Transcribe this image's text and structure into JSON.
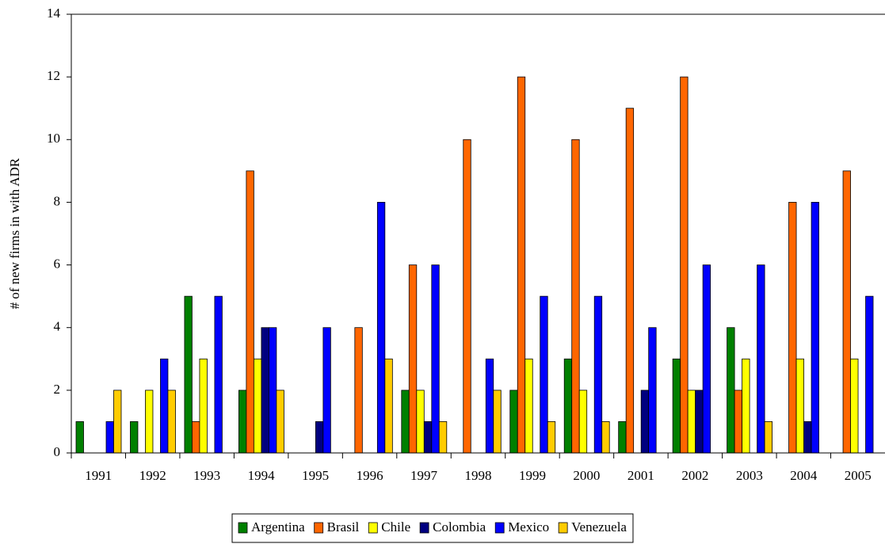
{
  "chart_data": {
    "type": "bar",
    "y_label": "# of new firms in with ADR",
    "categories": [
      "1991",
      "1992",
      "1993",
      "1994",
      "1995",
      "1996",
      "1997",
      "1998",
      "1999",
      "2000",
      "2001",
      "2002",
      "2003",
      "2004",
      "2005"
    ],
    "series": [
      {
        "name": "Argentina",
        "color": "#008000",
        "values": [
          1,
          1,
          5,
          2,
          0,
          0,
          2,
          0,
          2,
          3,
          1,
          3,
          4,
          0,
          0
        ]
      },
      {
        "name": "Brasil",
        "color": "#ff6600",
        "values": [
          0,
          0,
          1,
          9,
          0,
          4,
          6,
          10,
          12,
          10,
          11,
          12,
          2,
          8,
          9
        ]
      },
      {
        "name": "Chile",
        "color": "#ffff00",
        "values": [
          0,
          2,
          3,
          3,
          0,
          0,
          2,
          0,
          3,
          2,
          0,
          2,
          3,
          3,
          3
        ]
      },
      {
        "name": "Colombia",
        "color": "#000080",
        "values": [
          0,
          0,
          0,
          4,
          1,
          0,
          1,
          0,
          0,
          0,
          2,
          2,
          0,
          1,
          0
        ]
      },
      {
        "name": "Mexico",
        "color": "#0000ff",
        "values": [
          1,
          3,
          5,
          4,
          4,
          8,
          6,
          3,
          5,
          5,
          4,
          6,
          6,
          8,
          5
        ]
      },
      {
        "name": "Venezuela",
        "color": "#ffcc00",
        "values": [
          2,
          2,
          0,
          2,
          0,
          3,
          1,
          2,
          1,
          1,
          0,
          0,
          1,
          0,
          0
        ]
      }
    ],
    "ylim": [
      0,
      14
    ],
    "yticks": [
      0,
      2,
      4,
      6,
      8,
      10,
      12,
      14
    ],
    "legend": "bottom"
  }
}
